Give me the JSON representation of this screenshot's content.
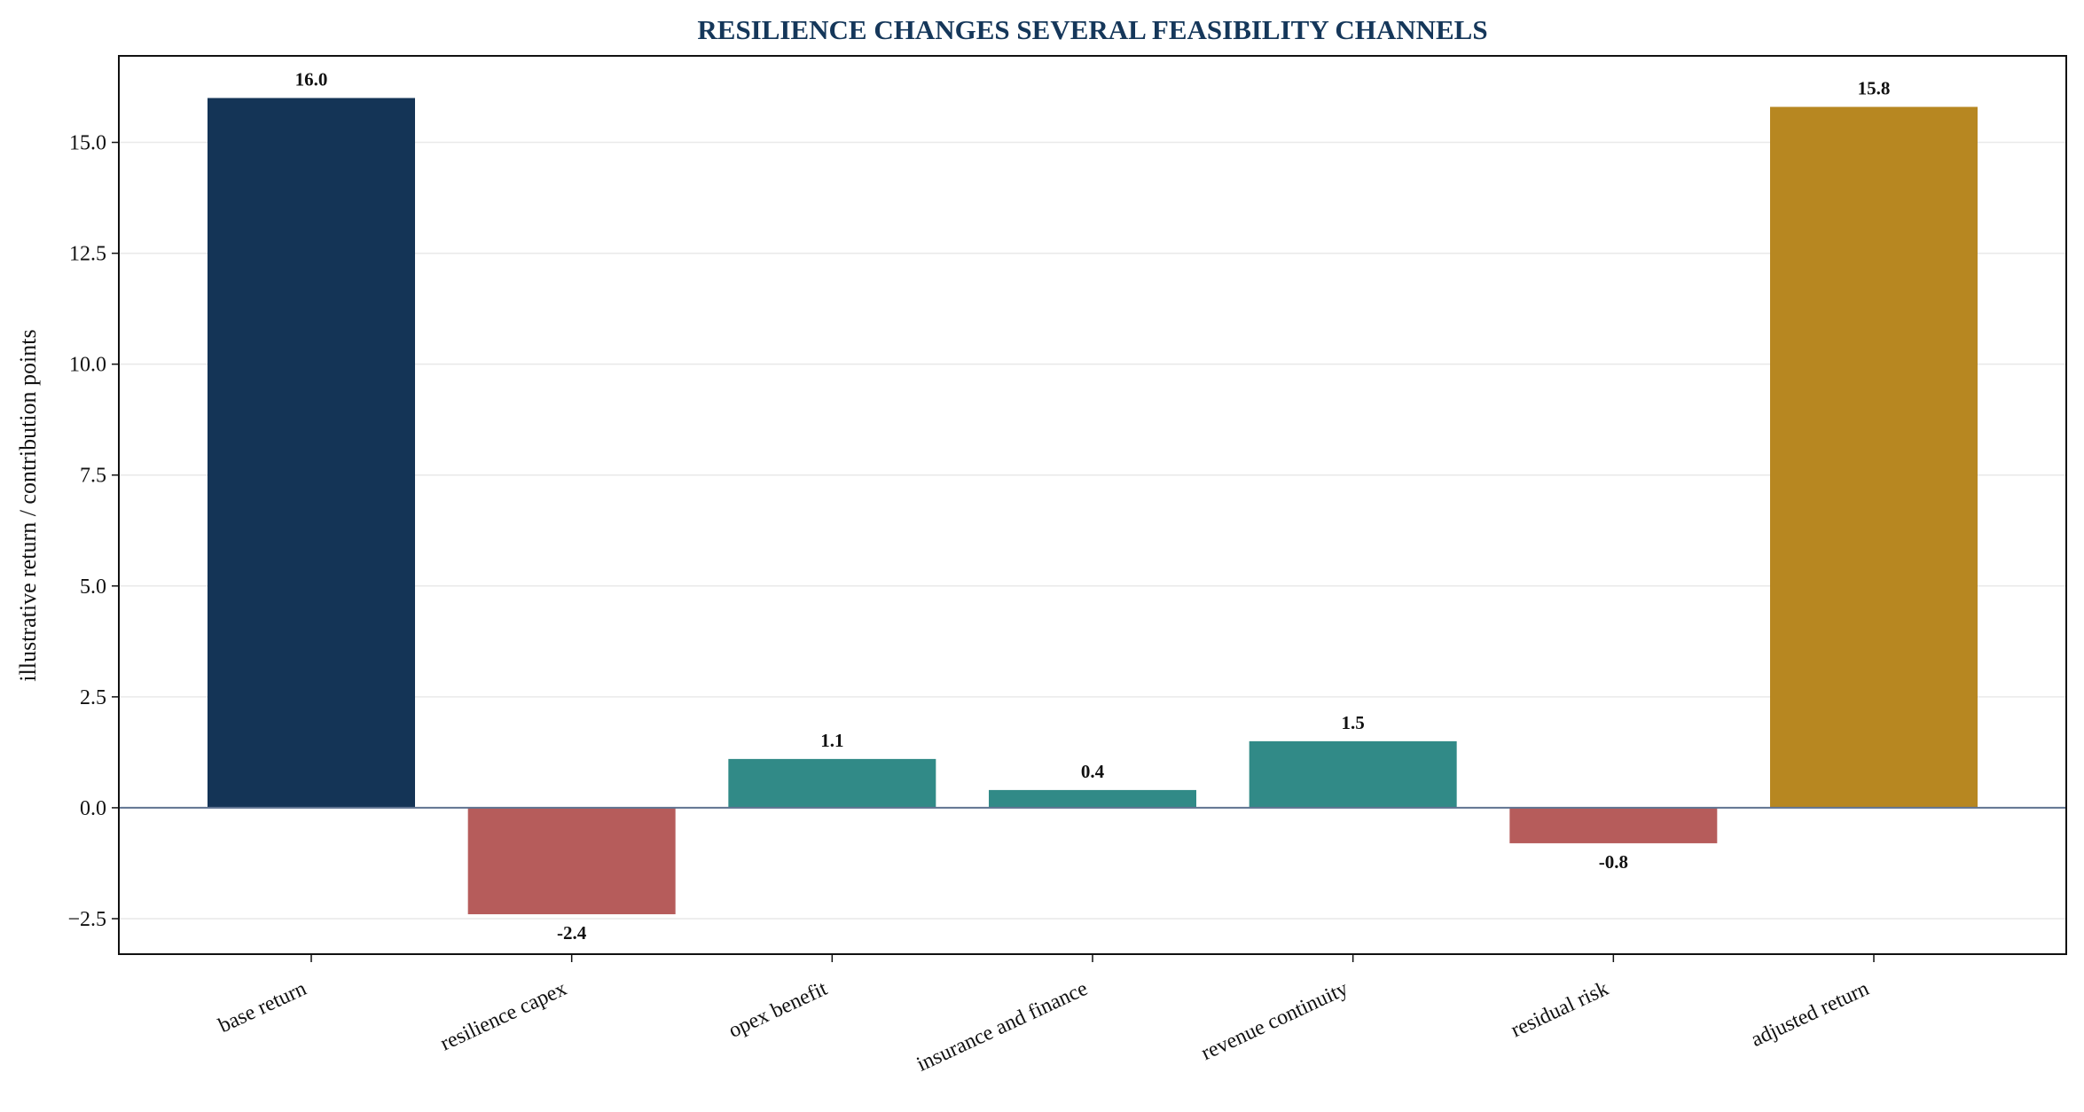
{
  "chart_data": {
    "type": "bar",
    "title": "RESILIENCE CHANGES SEVERAL FEASIBILITY CHANNELS",
    "xlabel": "",
    "ylabel": "illustrative return / contribution points",
    "categories": [
      "base return",
      "resilience capex",
      "opex benefit",
      "insurance and finance",
      "revenue continuity",
      "residual risk",
      "adjusted return"
    ],
    "values": [
      16.0,
      -2.4,
      1.1,
      0.4,
      1.5,
      -0.8,
      15.8
    ],
    "value_labels": [
      "16.0",
      "-2.4",
      "1.1",
      "0.4",
      "1.5",
      "-0.8",
      "15.8"
    ],
    "ylim": [
      -3.3,
      16.95
    ],
    "yticks": [
      -2.5,
      0.0,
      2.5,
      5.0,
      7.5,
      10.0,
      12.5,
      15.0
    ],
    "ytick_labels": [
      "−2.5",
      "0.0",
      "2.5",
      "5.0",
      "7.5",
      "10.0",
      "12.5",
      "15.0"
    ],
    "grid": true,
    "legend": "none",
    "bar_colors": [
      "#143456",
      "#b65c5b",
      "#318a87",
      "#318a87",
      "#318a87",
      "#b65c5b",
      "#b78721"
    ],
    "colors": {
      "title": "#15375a",
      "zero_line": "#5f7391",
      "grid": "#e9e9e9",
      "frame": "#111111"
    }
  }
}
